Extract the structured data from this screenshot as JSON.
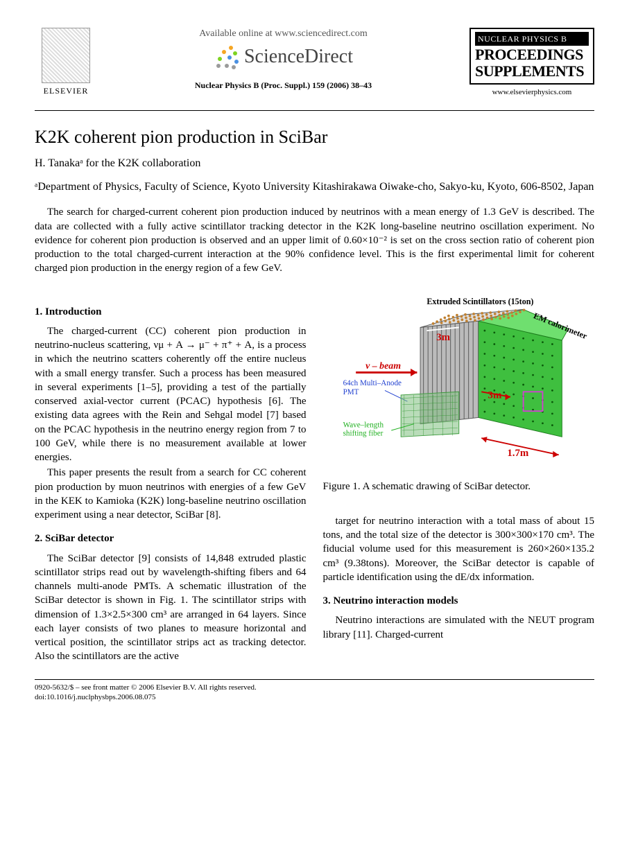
{
  "header": {
    "elsevier_label": "ELSEVIER",
    "available_online": "Available online at www.sciencedirect.com",
    "sciencedirect": "ScienceDirect",
    "journal_ref": "Nuclear Physics B (Proc. Suppl.) 159 (2006) 38–43",
    "journal_box": {
      "bar": "NUCLEAR PHYSICS B",
      "line1": "PROCEEDINGS",
      "line2": "SUPPLEMENTS"
    },
    "elsevier_url": "www.elsevierphysics.com",
    "sd_dot_colors": [
      "#f5a623",
      "#f5a623",
      "#7ed321",
      "#7ed321",
      "#4a90e2",
      "#4a90e2",
      "#9b9b9b",
      "#9b9b9b",
      "#9b9b9b"
    ]
  },
  "title": "K2K coherent pion production in SciBar",
  "authors": "H. Tanakaᵃ for the K2K collaboration",
  "affiliation": "ᵃDepartment of Physics, Faculty of Science, Kyoto University Kitashirakawa Oiwake-cho, Sakyo-ku, Kyoto, 606-8502, Japan",
  "abstract": "The search for charged-current coherent pion production induced by neutrinos with a mean energy of 1.3 GeV is described. The data are collected with a fully active scintillator tracking detector in the K2K long-baseline neutrino oscillation experiment. No evidence for coherent pion production is observed and an upper limit of 0.60×10⁻² is set on the cross section ratio of coherent pion production to the total charged-current interaction at the 90% confidence level. This is the first experimental limit for coherent charged pion production in the energy region of a few GeV.",
  "sections": {
    "intro": {
      "heading": "1. Introduction",
      "p1": "The charged-current (CC) coherent pion production in neutrino-nucleus scattering, νμ + A → μ⁻ + π⁺ + A, is a process in which the neutrino scatters coherently off the entire nucleus with a small energy transfer. Such a process has been measured in several experiments [1–5], providing a test of the partially conserved axial-vector current (PCAC) hypothesis [6]. The existing data agrees with the Rein and Sehgal model [7] based on the PCAC hypothesis in the neutrino energy region from 7 to 100 GeV, while there is no measurement available at lower energies.",
      "p2": "This paper presents the result from a search for CC coherent pion production by muon neutrinos with energies of a few GeV in the KEK to Kamioka (K2K) long-baseline neutrino oscillation experiment using a near detector, SciBar [8]."
    },
    "detector": {
      "heading": "2. SciBar detector",
      "p1": "The SciBar detector [9] consists of 14,848 extruded plastic scintillator strips read out by wavelength-shifting fibers and 64 channels multi-anode PMTs. A schematic illustration of the SciBar detector is shown in Fig. 1. The scintillator strips with dimension of 1.3×2.5×300 cm³ are arranged in 64 layers. Since each layer consists of two planes to measure horizontal and vertical position, the scintillator strips act as tracking detector. Also the scintillators are the active",
      "p2_right": "target for neutrino interaction with a total mass of about 15 tons, and the total size of the detector is 300×300×170 cm³. The fiducial volume used for this measurement is 260×260×135.2 cm³ (9.38tons). Moreover, the SciBar detector is capable of particle identification using the dE/dx information."
    },
    "models": {
      "heading": "3. Neutrino interaction models",
      "p1": "Neutrino interactions are simulated with the NEUT program library [11]. Charged-current"
    }
  },
  "figure1": {
    "caption": "Figure 1. A schematic drawing of SciBar detector.",
    "labels": {
      "scint": "Extruded Scintillators (15ton)",
      "em": "EM calorimeter",
      "beam": "ν – beam",
      "pmt": "64ch Multi–Anode PMT",
      "wls": "Wave–length shifting fiber",
      "dim3m_a": "3m",
      "dim3m_b": "3m",
      "dim17m": "1.7m"
    },
    "colors": {
      "scint_top": "#888888",
      "scint_dots": "#c08030",
      "calo": "#3fbf3f",
      "pmt_block": "#7fbf7f",
      "beam_arrow": "#cc0000",
      "dim_text": "#cc0000",
      "pmt_text": "#2040d0",
      "wls_text": "#20b020",
      "em_text": "#000000",
      "magenta_box": "#d040d0"
    }
  },
  "footer": {
    "line1": "0920-5632/$ – see front matter © 2006 Elsevier B.V. All rights reserved.",
    "line2": "doi:10.1016/j.nuclphysbps.2006.08.075"
  }
}
